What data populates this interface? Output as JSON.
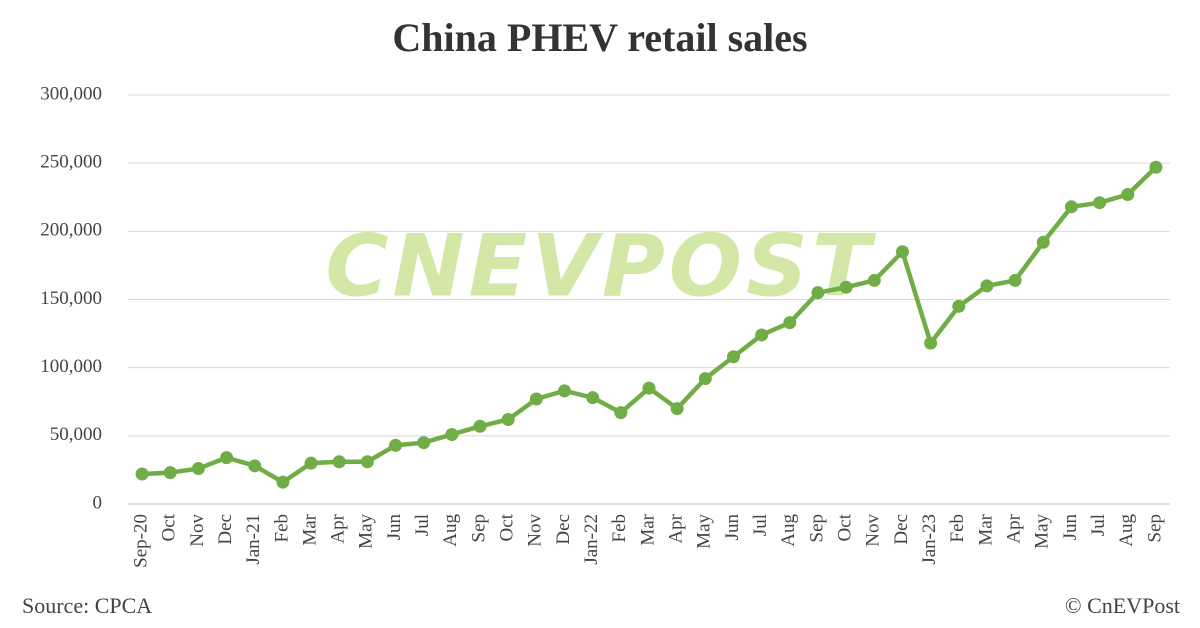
{
  "chart_data": {
    "type": "line",
    "title": "China PHEV retail sales",
    "categories": [
      "Sep-20",
      "Oct",
      "Nov",
      "Dec",
      "Jan-21",
      "Feb",
      "Mar",
      "Apr",
      "May",
      "Jun",
      "Jul",
      "Aug",
      "Sep",
      "Oct",
      "Nov",
      "Dec",
      "Jan-22",
      "Feb",
      "Mar",
      "Apr",
      "May",
      "Jun",
      "Jul",
      "Aug",
      "Sep",
      "Oct",
      "Nov",
      "Dec",
      "Jan-23",
      "Feb",
      "Mar",
      "Apr",
      "May",
      "Jun",
      "Jul",
      "Aug",
      "Sep"
    ],
    "series": [
      {
        "name": "PHEV retail sales",
        "color": "#70ad47",
        "values": [
          22000,
          23000,
          26000,
          34000,
          28000,
          16000,
          30000,
          31000,
          31000,
          43000,
          45000,
          51000,
          57000,
          62000,
          77000,
          83000,
          78000,
          67000,
          85000,
          70000,
          92000,
          108000,
          124000,
          133000,
          155000,
          159000,
          164000,
          185000,
          118000,
          145000,
          160000,
          164000,
          192000,
          218000,
          221000,
          227000,
          247000
        ]
      }
    ],
    "ylim": [
      0,
      300000
    ],
    "yticks": [
      0,
      {
        "value": 50000,
        "label": "50,000"
      },
      {
        "value": 100000,
        "label": "100,000"
      },
      {
        "value": 150000,
        "label": "150,000"
      },
      {
        "value": 200000,
        "label": "200,000"
      },
      {
        "value": 250000,
        "label": "250,000"
      },
      {
        "value": 300000,
        "label": "300,000"
      }
    ],
    "grid": true,
    "watermark": "CNEVPOST",
    "source": "Source: CPCA",
    "credit": "© CnEVPost"
  }
}
